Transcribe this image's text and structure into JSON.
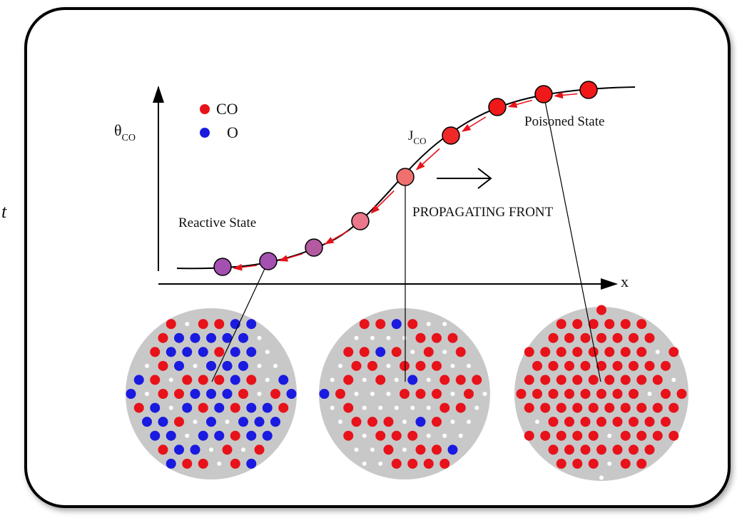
{
  "edge_fragment": "t",
  "axis": {
    "y_symbol": "θ",
    "y_subscript": "CO",
    "x_label": "x"
  },
  "legend": {
    "co": "CO",
    "o": "O"
  },
  "flux": {
    "symbol": "J",
    "subscript": "CO"
  },
  "labels": {
    "poisoned": "Poisoned State",
    "reactive": "Reactive State",
    "front": "PROPAGATING FRONT"
  }
}
